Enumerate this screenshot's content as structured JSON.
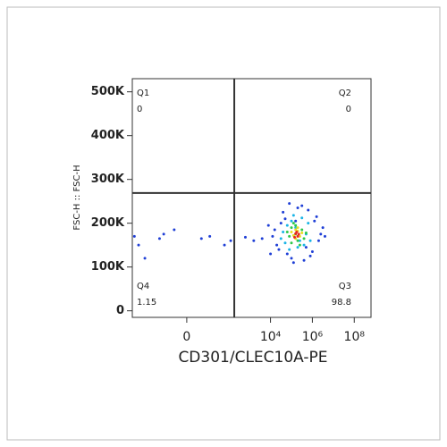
{
  "chart_data": {
    "type": "scatter",
    "x_label": "CD301/CLEC10A-PE",
    "y_label": "FSC-H :: FSC-H",
    "xlim": [
      -2.6,
      8.8
    ],
    "ylim": [
      -15000,
      530000
    ],
    "xticks": [
      {
        "value": 0,
        "label": "0"
      },
      {
        "value": 4,
        "label": "10⁴"
      },
      {
        "value": 6,
        "label": "10⁶"
      },
      {
        "value": 8,
        "label": "10⁸"
      }
    ],
    "yticks": [
      {
        "value": 0,
        "label": "0"
      },
      {
        "value": 100000,
        "label": "100K"
      },
      {
        "value": 200000,
        "label": "200K"
      },
      {
        "value": 300000,
        "label": "300K"
      },
      {
        "value": 400000,
        "label": "400K"
      },
      {
        "value": 500000,
        "label": "500K"
      }
    ],
    "gate_x": 2.27,
    "gate_y": 269000,
    "quadrants": [
      {
        "name": "Q1",
        "value": 0
      },
      {
        "name": "Q2",
        "value": 0
      },
      {
        "name": "Q3",
        "value": 98.8
      },
      {
        "name": "Q4",
        "value": 1.15
      }
    ],
    "series": [
      {
        "color": "#1f3fd6",
        "x": [
          4.1,
          4.3,
          4.5,
          4.2,
          4.8,
          5.0,
          5.6,
          6.0,
          6.3,
          6.5,
          6.2,
          5.8,
          5.3,
          4.6,
          4.4,
          5.1,
          5.9,
          6.4,
          4.9,
          5.5,
          3.6,
          3.2,
          2.8,
          3.9,
          6.6,
          5.2,
          4.7,
          6.1,
          5.7,
          4.0,
          -2.5,
          -2.3,
          -1.3,
          -0.6,
          -1.1,
          0.7,
          1.1,
          1.8,
          2.1,
          -2.0
        ],
        "y": [
          170000,
          150000,
          200000,
          185000,
          130000,
          120000,
          115000,
          135000,
          160000,
          190000,
          215000,
          230000,
          235000,
          225000,
          140000,
          110000,
          125000,
          175000,
          245000,
          240000,
          165000,
          160000,
          168000,
          195000,
          170000,
          205000,
          210000,
          205000,
          145000,
          130000,
          170000,
          150000,
          165000,
          185000,
          175000,
          165000,
          170000,
          150000,
          160000,
          120000
        ]
      },
      {
        "color": "#19b4e6",
        "x": [
          4.7,
          5.0,
          5.8,
          5.9,
          4.6,
          5.3,
          5.5,
          4.9,
          5.7,
          5.1,
          4.8,
          5.6,
          5.2,
          4.5,
          5.4
        ],
        "y": [
          155000,
          205000,
          200000,
          160000,
          180000,
          145000,
          212000,
          140000,
          175000,
          218000,
          195000,
          150000,
          190000,
          165000,
          160000
        ]
      },
      {
        "color": "#2ec84a",
        "x": [
          4.9,
          5.2,
          5.5,
          5.6,
          5.0,
          5.3,
          5.1,
          5.4,
          4.8,
          5.7,
          5.2,
          5.0
        ],
        "y": [
          170000,
          195000,
          185000,
          165000,
          155000,
          160000,
          200000,
          150000,
          180000,
          178000,
          175000,
          190000
        ]
      },
      {
        "color": "#e8e020",
        "x": [
          5.1,
          5.3,
          5.4,
          5.2,
          5.0,
          5.5,
          5.3,
          5.2
        ],
        "y": [
          172000,
          182000,
          170000,
          165000,
          180000,
          178000,
          190000,
          185000
        ]
      },
      {
        "color": "#e8281e",
        "x": [
          5.2,
          5.3,
          5.25,
          5.35,
          5.15
        ],
        "y": [
          176000,
          170000,
          180000,
          175000,
          168000
        ]
      }
    ]
  }
}
